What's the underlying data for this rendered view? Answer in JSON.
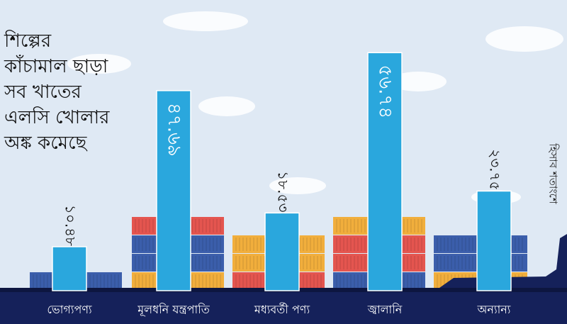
{
  "headline_lines": [
    "শিল্পের",
    "কাঁচামাল ছাড়া",
    "সব খাতের",
    "এলসি খোলার",
    "অঙ্ক কমেছে"
  ],
  "colors": {
    "bar": "#2aa7dd",
    "ship": "#15215a",
    "sky": "#dfe9f4",
    "container_blue": "#3b5eab",
    "container_red": "#e4554f",
    "container_orange": "#f1ae3c"
  },
  "chart_data": {
    "type": "bar",
    "categories": [
      "ভোগ্যপণ্য",
      "মূলধনি যন্ত্রপাতি",
      "মধ্যবর্তী পণ্য",
      "জ্বালানি",
      "অন্যান্য"
    ],
    "values": [
      10.48,
      47.69,
      18.53,
      56.74,
      23.75
    ],
    "value_labels": [
      "১০.৪৮",
      "৪৭.৬৯",
      "১৮.৫৩",
      "৫৬.৭৪",
      "২৩.৭৫"
    ],
    "unit_label": "হিসাব শতাংশে",
    "ylim": [
      0,
      60
    ],
    "grid": false,
    "legend": "none"
  }
}
